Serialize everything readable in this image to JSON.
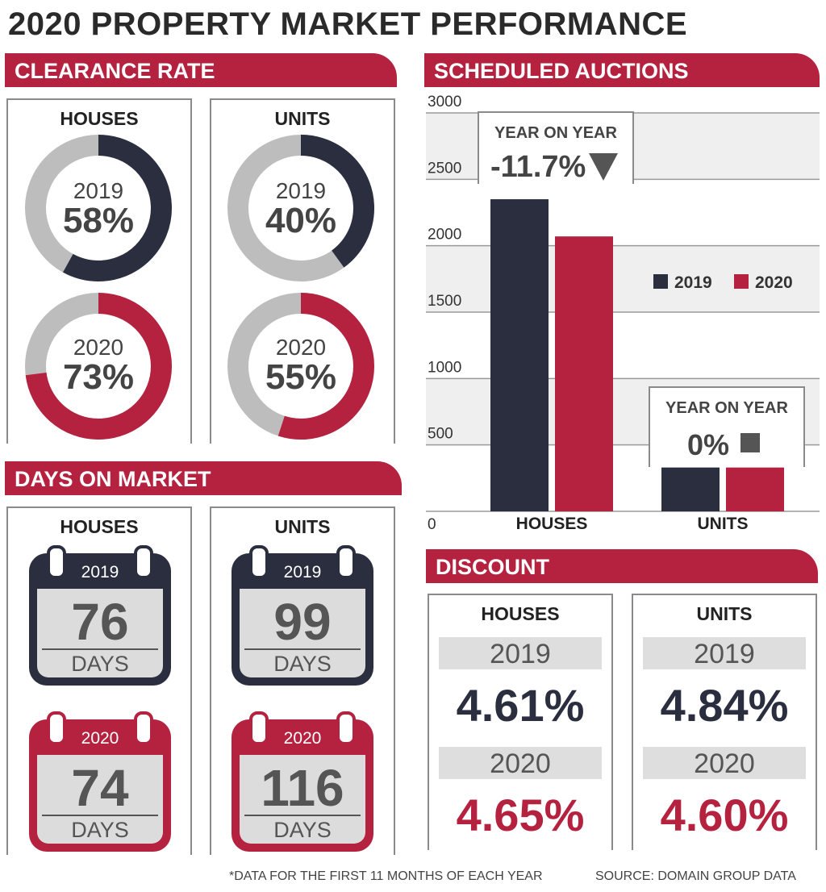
{
  "title": "2020 PROPERTY MARKET PERFORMANCE",
  "colors": {
    "y2019": "#2a2e3f",
    "y2020": "#b5223f",
    "grey": "#bdbdbd"
  },
  "clearance": {
    "heading": "CLEARANCE RATE",
    "houses": {
      "label": "HOUSES",
      "y2019": {
        "year": "2019",
        "value": "58%",
        "pct": 58
      },
      "y2020": {
        "year": "2020",
        "value": "73%",
        "pct": 73
      }
    },
    "units": {
      "label": "UNITS",
      "y2019": {
        "year": "2019",
        "value": "40%",
        "pct": 40
      },
      "y2020": {
        "year": "2020",
        "value": "55%",
        "pct": 55
      }
    }
  },
  "days": {
    "heading": "DAYS ON MARKET",
    "houses": {
      "label": "HOUSES",
      "y2019": {
        "year": "2019",
        "value": "76",
        "unit": "DAYS"
      },
      "y2020": {
        "year": "2020",
        "value": "74",
        "unit": "DAYS"
      }
    },
    "units": {
      "label": "UNITS",
      "y2019": {
        "year": "2019",
        "value": "99",
        "unit": "DAYS"
      },
      "y2020": {
        "year": "2020",
        "value": "116",
        "unit": "DAYS"
      }
    }
  },
  "auctions": {
    "heading": "SCHEDULED AUCTIONS",
    "houses_callout": {
      "title": "YEAR ON YEAR",
      "value": "-11.7%",
      "icon": "triangle-down-icon"
    },
    "units_callout": {
      "title": "YEAR ON YEAR",
      "value": "0%",
      "icon": "square-icon"
    }
  },
  "discount": {
    "heading": "DISCOUNT",
    "houses": {
      "label": "HOUSES",
      "y2019": {
        "year": "2019",
        "value": "4.61%"
      },
      "y2020": {
        "year": "2020",
        "value": "4.65%"
      }
    },
    "units": {
      "label": "UNITS",
      "y2019": {
        "year": "2019",
        "value": "4.84%"
      },
      "y2020": {
        "year": "2020",
        "value": "4.60%"
      }
    }
  },
  "footer": {
    "note": "*DATA FOR THE FIRST 11 MONTHS OF EACH YEAR",
    "source": "SOURCE: DOMAIN GROUP DATA"
  },
  "chart_data": {
    "type": "bar",
    "title": "SCHEDULED AUCTIONS",
    "categories": [
      "HOUSES",
      "UNITS"
    ],
    "series": [
      {
        "name": "2019",
        "values": [
          2350,
          330
        ]
      },
      {
        "name": "2020",
        "values": [
          2070,
          330
        ]
      }
    ],
    "yticks": [
      "3000",
      "2500",
      "2000",
      "1500",
      "1000",
      "500",
      "0"
    ],
    "ylim": [
      0,
      3000
    ],
    "legend": "right",
    "grid": true
  }
}
